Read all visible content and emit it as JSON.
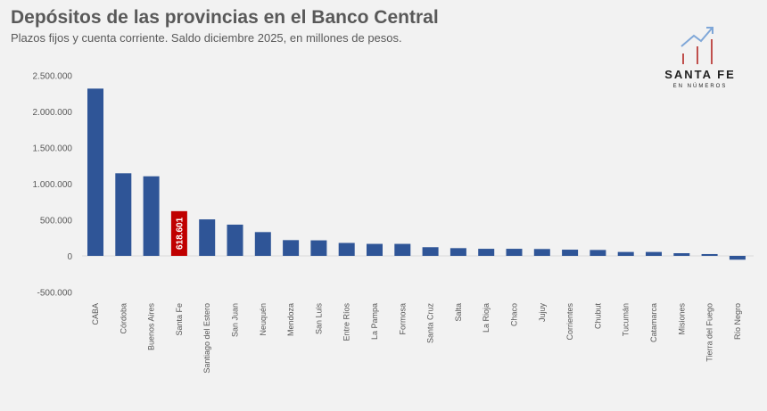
{
  "header": {
    "title": "Depósitos de las provincias en el Banco Central",
    "subtitle": "Plazos fijos y cuenta corriente. Saldo diciembre 2025, en millones de pesos."
  },
  "logo": {
    "line1": "SANTA FE",
    "line2": "EN NÚMEROS"
  },
  "colors": {
    "bar": "#2f5597",
    "highlight": "#c00000",
    "text": "#595959",
    "logo_arrow": "#7fa7d8",
    "logo_bars": "#c0504d"
  },
  "chart_data": {
    "type": "bar",
    "title": "Depósitos de las provincias en el Banco Central",
    "subtitle": "Plazos fijos y cuenta corriente. Saldo diciembre 2025, en millones de pesos.",
    "categories": [
      "CABA",
      "Córdoba",
      "Buenos Aires",
      "Santa Fe",
      "Santiago del Estero",
      "San Juan",
      "Neuquén",
      "Mendoza",
      "San Luis",
      "Entre Ríos",
      "La Pampa",
      "Formosa",
      "Santa Cruz",
      "Salta",
      "La Rioja",
      "Chaco",
      "Jujuy",
      "Corrientes",
      "Chubut",
      "Tucumán",
      "Catamarca",
      "Misiones",
      "Tierra del Fuego",
      "Río Negro"
    ],
    "values": [
      2314000,
      1143000,
      1101000,
      618601,
      505000,
      432000,
      329000,
      218000,
      215000,
      179000,
      166000,
      166000,
      120000,
      107000,
      98000,
      98000,
      95000,
      86000,
      82000,
      54000,
      54000,
      37000,
      25000,
      -53000
    ],
    "highlight": "Santa Fe",
    "data_labels": [
      {
        "category": "Santa Fe",
        "text": "618.601"
      }
    ],
    "ylim": [
      -500000,
      2500000
    ],
    "yticks": [
      "-500.000",
      "0",
      "500.000",
      "1.000.000",
      "1.500.000",
      "2.000.000",
      "2.500.000"
    ],
    "ytick_values": [
      -500000,
      0,
      500000,
      1000000,
      1500000,
      2000000,
      2500000
    ],
    "xlabel": "",
    "ylabel": "",
    "grid": false,
    "legend": "none"
  }
}
